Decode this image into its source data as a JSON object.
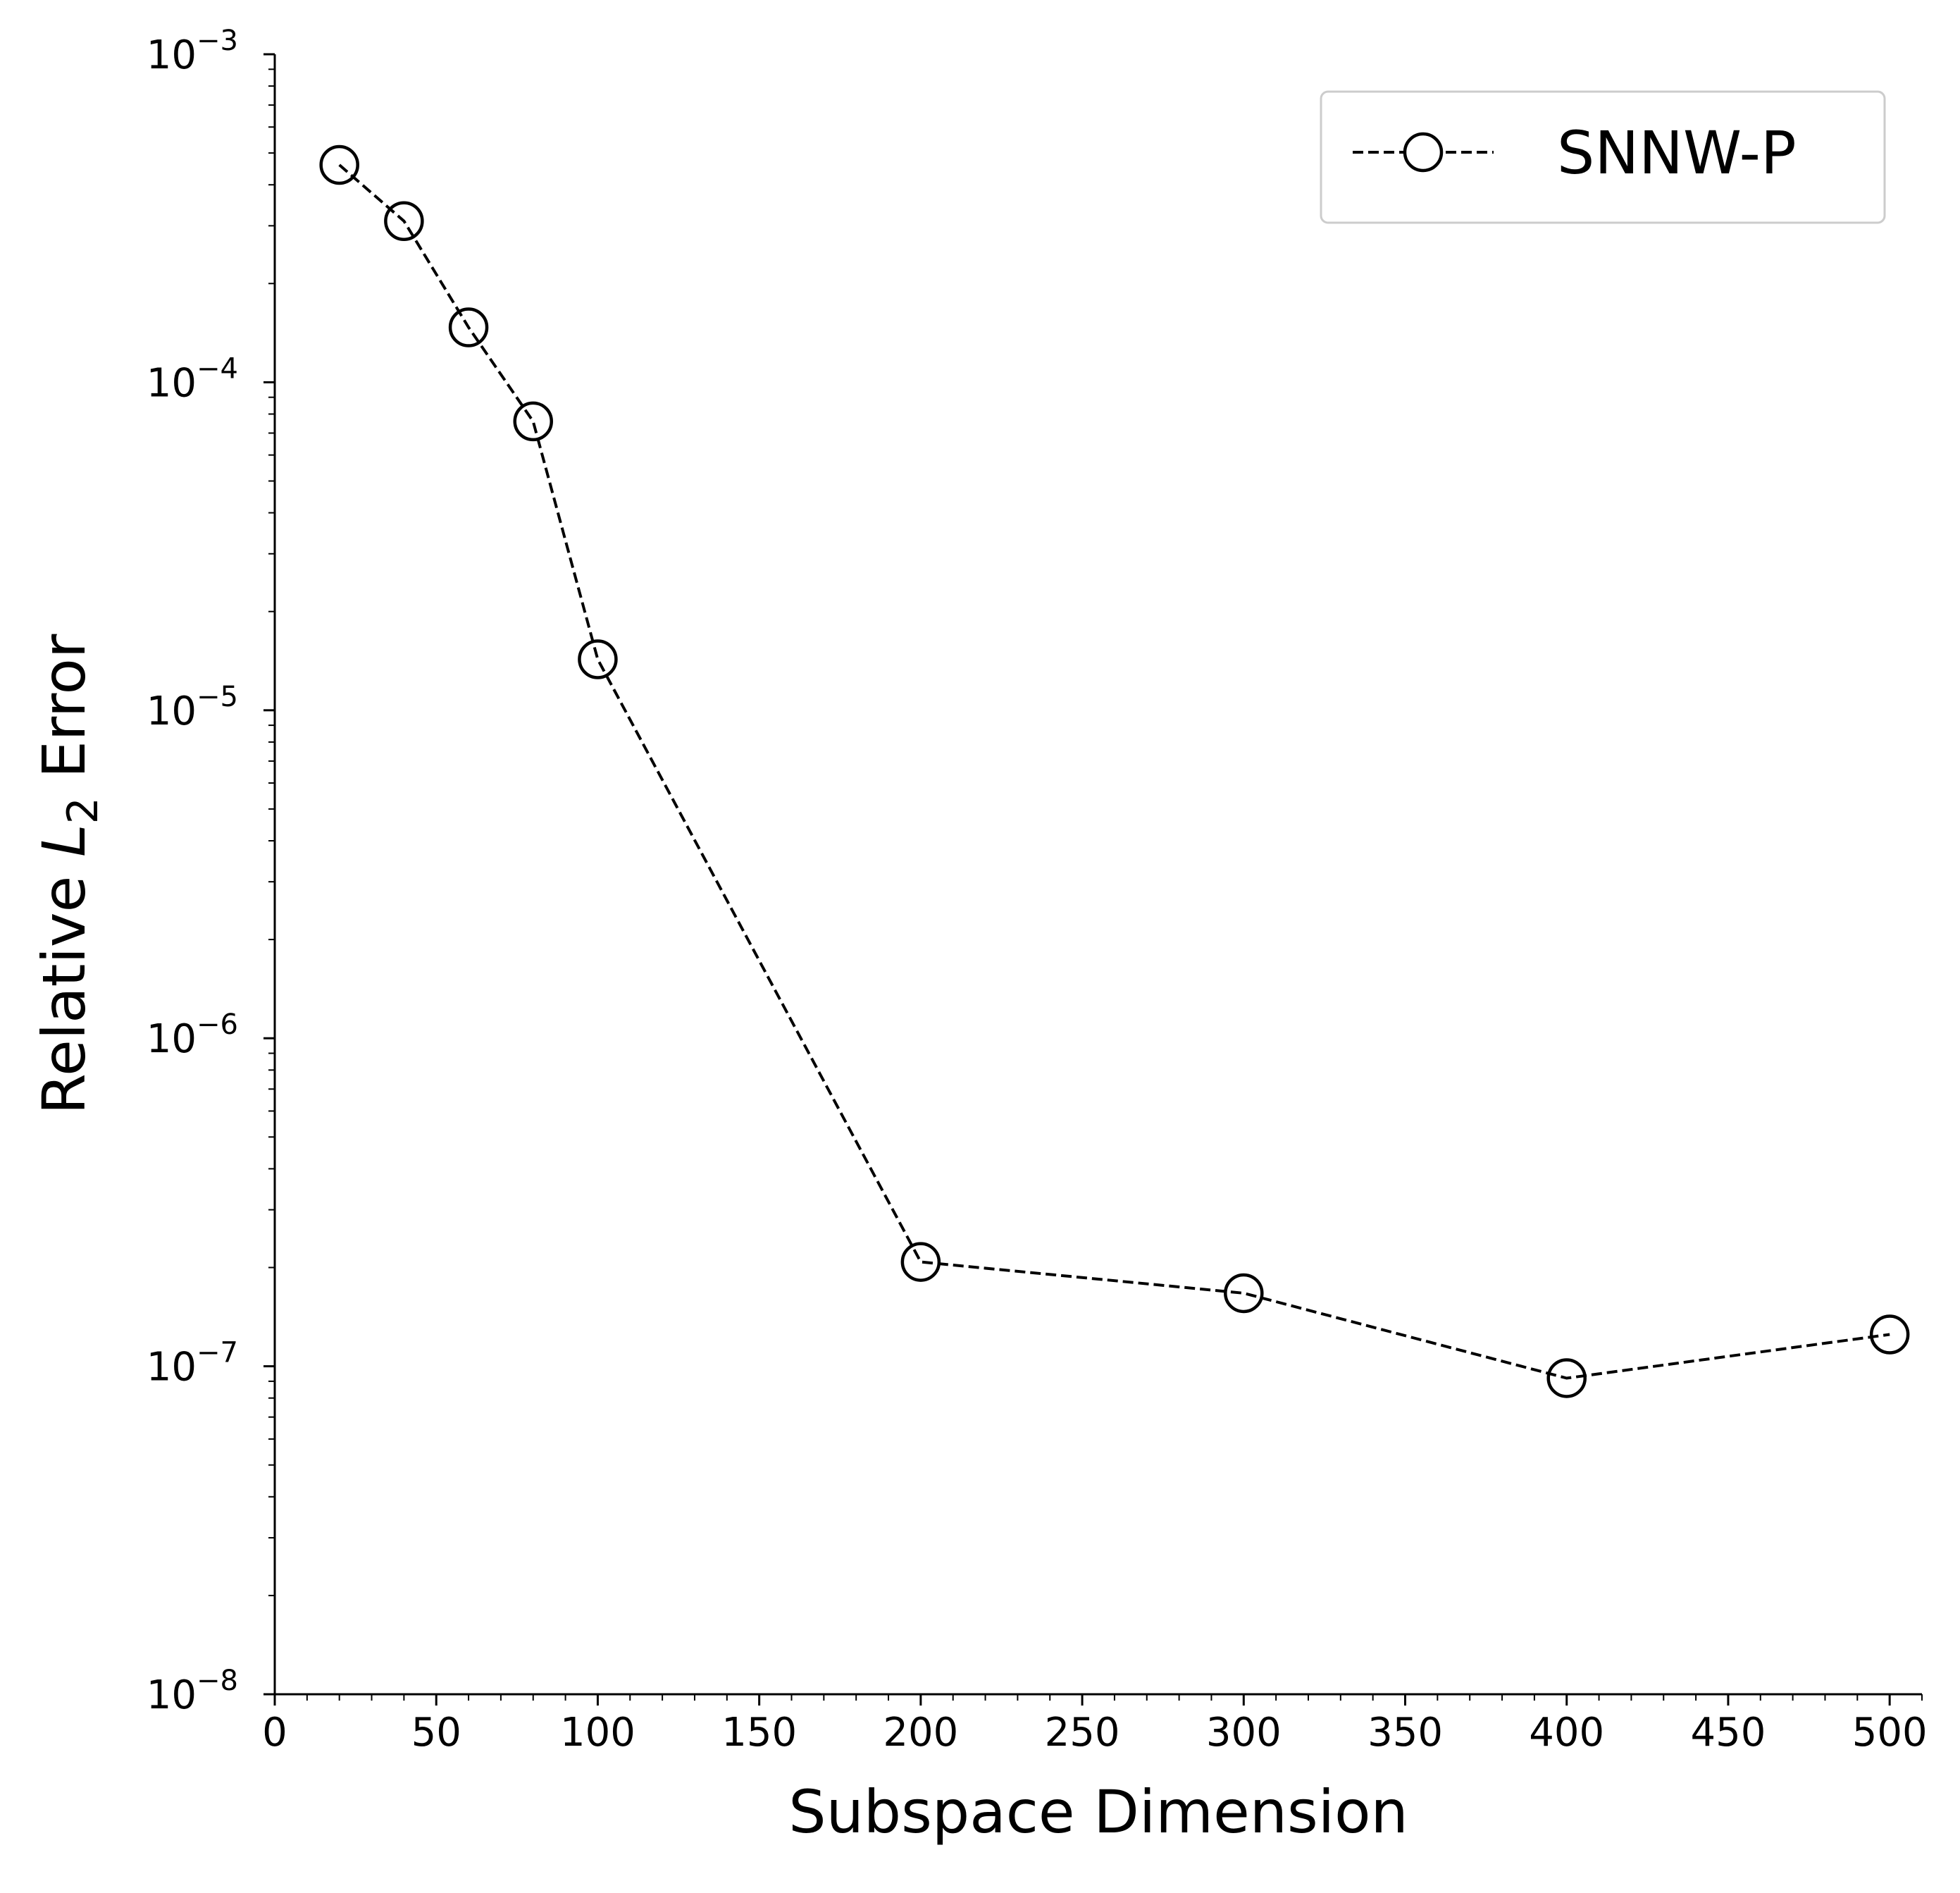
{
  "chart_data": {
    "type": "line",
    "title": "",
    "xlabel": "Subspace Dimension",
    "ylabel": {
      "prefix": "Relative ",
      "var": "L",
      "sub": "2",
      "suffix": " Error"
    },
    "xscale": "linear",
    "yscale": "log",
    "xlim": [
      0,
      510
    ],
    "ylim": [
      1e-08,
      0.001
    ],
    "grid": false,
    "legend_position": "upper right",
    "x_major_ticks": [
      0,
      50,
      100,
      150,
      200,
      250,
      300,
      350,
      400,
      450,
      500
    ],
    "x_tick_labels": [
      "0",
      "50",
      "100",
      "150",
      "200",
      "250",
      "300",
      "350",
      "400",
      "450",
      "500"
    ],
    "x_minor_step": 10,
    "y_major_ticks": [
      {
        "value": 1e-08,
        "base": "10",
        "exp": "−8"
      },
      {
        "value": 1e-07,
        "base": "10",
        "exp": "−7"
      },
      {
        "value": 1e-06,
        "base": "10",
        "exp": "−6"
      },
      {
        "value": 1e-05,
        "base": "10",
        "exp": "−5"
      },
      {
        "value": 0.0001,
        "base": "10",
        "exp": "−4"
      },
      {
        "value": 0.001,
        "base": "10",
        "exp": "−3"
      }
    ],
    "series": [
      {
        "name": "SNNW-P",
        "color": "#000000",
        "line_style": "dashed",
        "marker": "open-circle",
        "x": [
          20,
          40,
          60,
          80,
          100,
          200,
          300,
          400,
          500
        ],
        "y": [
          0.00046,
          0.00031,
          0.000147,
          7.6e-05,
          1.43e-05,
          2.08e-07,
          1.67e-07,
          9.2e-08,
          1.25e-07
        ]
      }
    ]
  }
}
